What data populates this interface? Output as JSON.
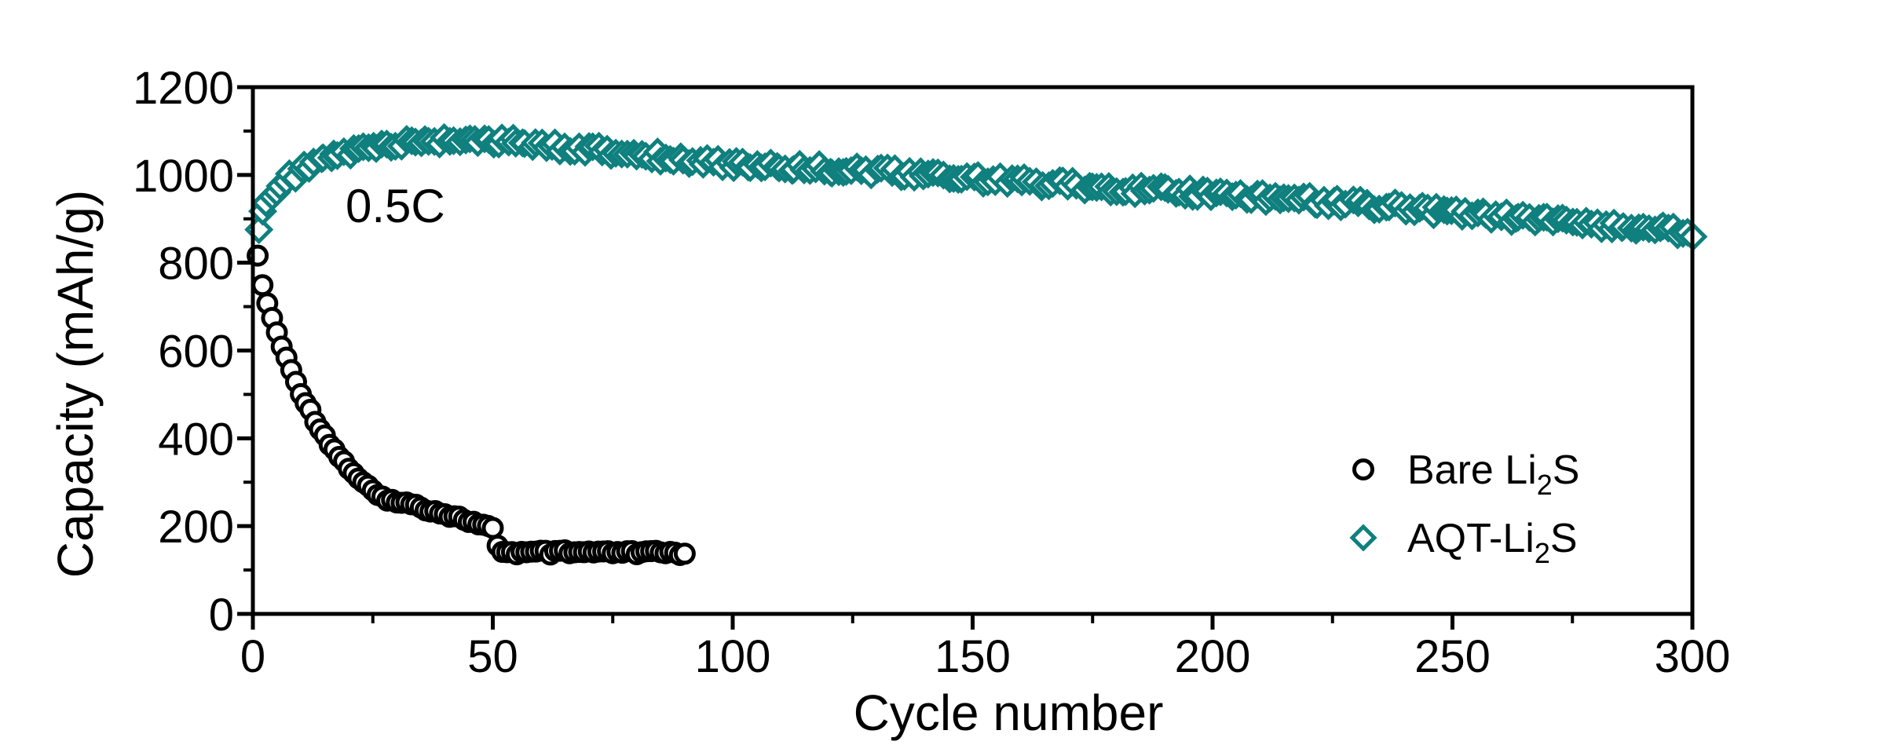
{
  "figure": {
    "background": "#ffffff",
    "axis_color": "#000000"
  },
  "chart_data": {
    "type": "scatter",
    "title": "",
    "xlabel": "Cycle number",
    "ylabel": "Capacity (mAh/g)",
    "xlim": [
      0,
      300
    ],
    "ylim": [
      0,
      1200
    ],
    "x_major_ticks": [
      0,
      50,
      100,
      150,
      200,
      250,
      300
    ],
    "x_minor_ticks": [
      25,
      75,
      125,
      175,
      225,
      275
    ],
    "y_major_ticks": [
      0,
      200,
      400,
      600,
      800,
      1000,
      1200
    ],
    "y_minor_ticks": [
      100,
      300,
      500,
      700,
      900,
      1100
    ],
    "grid": false,
    "legend_position": "right-center",
    "annotation": {
      "text": "0.5C",
      "x": 19,
      "y": 880
    },
    "series": [
      {
        "name": "Bare Li2S",
        "name_parts": [
          "Bare Li",
          "2",
          "S"
        ],
        "marker": "circle",
        "color": "#000000",
        "fill": "#ffffff",
        "x_start": 1,
        "x_step": 1,
        "values": [
          820,
          745,
          708,
          673,
          641,
          610,
          581,
          554,
          529,
          505,
          483,
          462,
          442,
          423,
          406,
          389,
          374,
          359,
          346,
          333,
          321,
          310,
          299,
          289,
          280,
          271,
          263,
          255,
          259,
          258,
          255,
          252,
          249,
          246,
          243,
          240,
          237,
          234,
          231,
          228,
          225,
          222,
          219,
          216,
          212,
          208,
          204,
          200,
          197,
          194,
          152,
          144,
          141,
          140,
          139,
          141,
          138,
          140,
          139,
          141,
          140,
          138,
          139,
          140,
          141,
          139,
          138,
          140,
          139,
          141,
          140,
          139,
          138,
          140,
          139,
          138,
          141,
          140,
          139,
          138,
          140,
          139,
          141,
          140,
          139,
          138,
          140,
          139,
          138,
          140
        ]
      },
      {
        "name": "AQT-Li2S",
        "name_parts": [
          "AQT-Li",
          "2",
          "S"
        ],
        "marker": "diamond",
        "color": "#0F807E",
        "fill": "#ffffff",
        "x_start": 1,
        "x_step": 1,
        "values": [
          885,
          910,
          930,
          948,
          962,
          974,
          984,
          993,
          1001,
          1008,
          1014,
          1020,
          1025,
          1030,
          1034,
          1038,
          1042,
          1045,
          1048,
          1051,
          1054,
          1056,
          1058,
          1060,
          1062,
          1064,
          1066,
          1067,
          1068,
          1070,
          1071,
          1072,
          1073,
          1074,
          1075,
          1076,
          1077,
          1077,
          1078,
          1079,
          1080,
          1080,
          1081,
          1082,
          1082,
          1082,
          1081,
          1080,
          1079,
          1078,
          1077,
          1076,
          1075,
          1074,
          1073,
          1072,
          1071,
          1070,
          1069,
          1068,
          1067,
          1066,
          1065,
          1064,
          1063,
          1062,
          1061,
          1060,
          1059,
          1058,
          1057,
          1056,
          1055,
          1054,
          1053,
          1052,
          1051,
          1050,
          1049,
          1048,
          1047,
          1045,
          1044,
          1043,
          1041,
          1040,
          1039,
          1037,
          1036,
          1035,
          1034,
          1033,
          1032,
          1031,
          1030,
          1029,
          1028,
          1027,
          1026,
          1025,
          1024,
          1024,
          1023,
          1023,
          1022,
          1022,
          1021,
          1021,
          1020,
          1020,
          1019,
          1019,
          1018,
          1018,
          1017,
          1017,
          1016,
          1016,
          1015,
          1015,
          1014,
          1013,
          1013,
          1012,
          1011,
          1011,
          1010,
          1009,
          1009,
          1008,
          1007,
          1006,
          1006,
          1005,
          1004,
          1003,
          1002,
          1001,
          1001,
          1000,
          999,
          998,
          998,
          997,
          996,
          996,
          995,
          994,
          994,
          993,
          992,
          991,
          990,
          990,
          989,
          988,
          987,
          986,
          986,
          985,
          984,
          983,
          982,
          982,
          981,
          980,
          979,
          978,
          978,
          977,
          976,
          975,
          975,
          974,
          973,
          973,
          972,
          971,
          971,
          970,
          969,
          969,
          968,
          967,
          967,
          966,
          965,
          965,
          964,
          964,
          963,
          962,
          962,
          961,
          960,
          960,
          959,
          958,
          958,
          957,
          956,
          955,
          955,
          954,
          953,
          953,
          952,
          951,
          951,
          950,
          949,
          948,
          947,
          947,
          946,
          945,
          944,
          943,
          943,
          942,
          941,
          940,
          939,
          939,
          938,
          937,
          936,
          935,
          935,
          934,
          933,
          932,
          931,
          930,
          929,
          929,
          928,
          927,
          926,
          925,
          924,
          923,
          922,
          921,
          920,
          919,
          918,
          917,
          916,
          915,
          914,
          913,
          912,
          911,
          910,
          909,
          908,
          907,
          906,
          905,
          904,
          903,
          902,
          902,
          901,
          900,
          899,
          898,
          898,
          897,
          896,
          895,
          894,
          893,
          892,
          892,
          891,
          890,
          889,
          888,
          887,
          886,
          885,
          884,
          883,
          882,
          881,
          880,
          879,
          878,
          877,
          876,
          875,
          874,
          874,
          873,
          872,
          871,
          870,
          869
        ]
      }
    ]
  }
}
